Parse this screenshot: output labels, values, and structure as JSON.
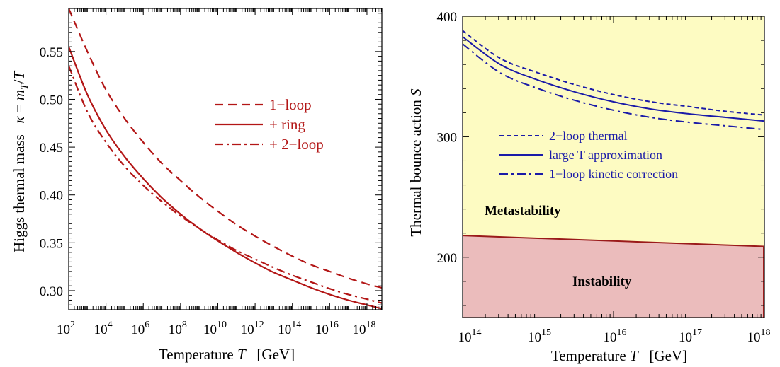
{
  "chart_data": [
    {
      "type": "line",
      "xlabel": "Temperature T   [GeV]",
      "ylabel": "Higgs thermal mass   κ = m_T/T",
      "xscale": "log10",
      "xlim": [
        2,
        18.8
      ],
      "ylim": [
        0.28,
        0.595
      ],
      "x_ticks": [
        2,
        4,
        6,
        8,
        10,
        12,
        14,
        16,
        18
      ],
      "x_tick_labels": [
        "10^2",
        "10^4",
        "10^6",
        "10^8",
        "10^10",
        "10^12",
        "10^14",
        "10^16",
        "10^18"
      ],
      "y_ticks": [
        0.3,
        0.35,
        0.4,
        0.45,
        0.5,
        0.55
      ],
      "y_tick_labels": [
        "0.30",
        "0.35",
        "0.40",
        "0.45",
        "0.50",
        "0.55"
      ],
      "legend_position": "right",
      "color": "#b31616",
      "series": [
        {
          "name": "1−loop",
          "style": "dashed",
          "x": [
            2,
            3,
            4,
            5,
            6,
            7,
            8,
            9,
            10,
            11,
            12,
            13,
            14,
            15,
            16,
            17,
            18,
            18.8
          ],
          "y": [
            0.595,
            0.55,
            0.51,
            0.48,
            0.455,
            0.433,
            0.415,
            0.398,
            0.383,
            0.369,
            0.357,
            0.346,
            0.336,
            0.327,
            0.32,
            0.313,
            0.307,
            0.303
          ]
        },
        {
          "name": "+ ring",
          "style": "solid",
          "x": [
            2,
            3,
            4,
            5,
            6,
            7,
            8,
            9,
            10,
            11,
            12,
            13,
            14,
            15,
            16,
            17,
            18,
            18.8
          ],
          "y": [
            0.555,
            0.505,
            0.468,
            0.44,
            0.417,
            0.397,
            0.38,
            0.365,
            0.352,
            0.34,
            0.329,
            0.319,
            0.311,
            0.303,
            0.296,
            0.29,
            0.285,
            0.281
          ]
        },
        {
          "name": "+ 2−loop",
          "style": "dashdot",
          "x": [
            2,
            3,
            4,
            5,
            6,
            7,
            8,
            9,
            10,
            11,
            12,
            13,
            14,
            15,
            16,
            17,
            18,
            18.8
          ],
          "y": [
            0.535,
            0.487,
            0.455,
            0.43,
            0.41,
            0.393,
            0.378,
            0.365,
            0.353,
            0.342,
            0.333,
            0.324,
            0.316,
            0.309,
            0.302,
            0.296,
            0.291,
            0.287
          ]
        }
      ]
    },
    {
      "type": "line",
      "xlabel": "Temperature T   [GeV]",
      "ylabel": "Thermal bounce action S",
      "xscale": "log10",
      "xlim": [
        14,
        18
      ],
      "ylim": [
        150,
        400
      ],
      "x_ticks": [
        14,
        15,
        16,
        17,
        18
      ],
      "x_tick_labels": [
        "10^14",
        "10^15",
        "10^16",
        "10^17",
        "10^18"
      ],
      "y_ticks": [
        200,
        300,
        400
      ],
      "y_tick_labels": [
        "200",
        "300",
        "400"
      ],
      "legend_position": "center",
      "color": "#1a1aa8",
      "regions": [
        {
          "label": "Metastability",
          "fill": "#fdfbc2"
        },
        {
          "label": "Instability",
          "fill": "#ebbcbc",
          "boundary_x": [
            14,
            18
          ],
          "boundary_y": [
            218,
            209
          ],
          "boundary_color": "#9a1a1a"
        }
      ],
      "series": [
        {
          "name": "2−loop thermal",
          "style": "dashed",
          "x": [
            14,
            14.5,
            15,
            15.5,
            16,
            16.5,
            17,
            17.5,
            18
          ],
          "y": [
            388,
            365,
            353,
            343,
            335,
            329,
            325,
            321,
            318
          ]
        },
        {
          "name": "large T approximation",
          "style": "solid",
          "x": [
            14,
            14.5,
            15,
            15.5,
            16,
            16.5,
            17,
            17.5,
            18
          ],
          "y": [
            383,
            360,
            347,
            337,
            329,
            323,
            319,
            316,
            313
          ]
        },
        {
          "name": "1−loop kinetic correction",
          "style": "dashdot",
          "x": [
            14,
            14.5,
            15,
            15.5,
            16,
            16.5,
            17,
            17.5,
            18
          ],
          "y": [
            377,
            353,
            340,
            330,
            322,
            316,
            312,
            309,
            306
          ]
        }
      ]
    }
  ]
}
